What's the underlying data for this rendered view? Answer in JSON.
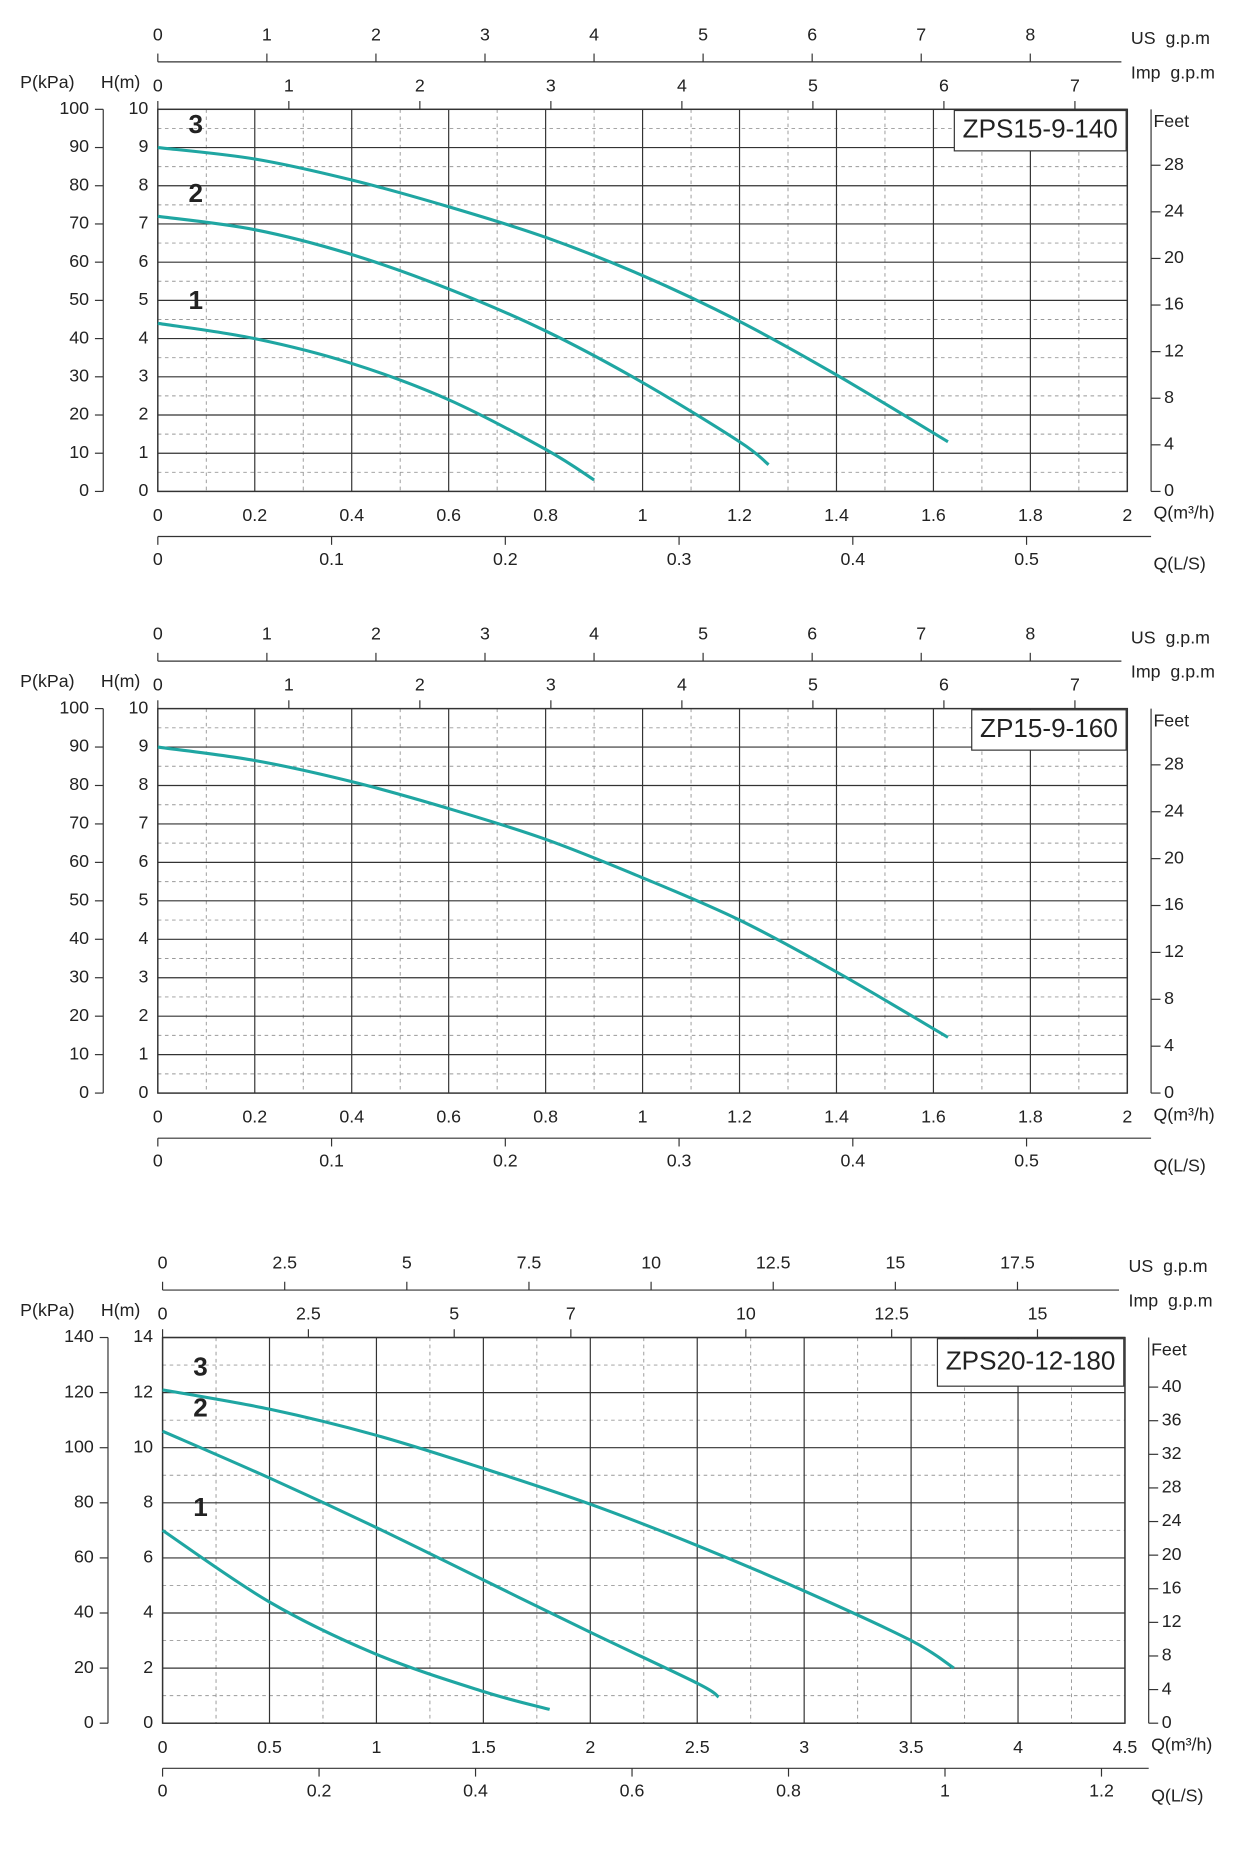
{
  "chart_data": [
    {
      "type": "line",
      "title": "ZPS15-9-140",
      "xlabel": "Q(m³/h)",
      "ylabel": "H(m)",
      "xlim": [
        0,
        2
      ],
      "xticks": [
        0,
        0.2,
        0.4,
        0.6,
        0.8,
        1,
        1.2,
        1.4,
        1.6,
        1.8,
        2
      ],
      "ylim": [
        0,
        10
      ],
      "yticks": [
        0,
        1,
        2,
        3,
        4,
        5,
        6,
        7,
        8,
        9,
        10
      ],
      "grid": true,
      "p_axis": {
        "label": "P(kPa)",
        "lim": [
          0,
          100
        ],
        "ticks": [
          0,
          10,
          20,
          30,
          40,
          50,
          60,
          70,
          80,
          90,
          100
        ]
      },
      "feet_axis": {
        "label": "Feet",
        "lim": [
          0,
          32.8
        ],
        "ticks": [
          0,
          4,
          8,
          12,
          16,
          20,
          24,
          28
        ]
      },
      "us_axis": {
        "label": "US  g.p.m",
        "lim": [
          0,
          8.89
        ],
        "ticks": [
          0,
          1,
          2,
          3,
          4,
          5,
          6,
          7,
          8
        ]
      },
      "imp_axis": {
        "label": "Imp  g.p.m",
        "lim": [
          0,
          7.4
        ],
        "ticks": [
          0,
          1,
          2,
          3,
          4,
          5,
          6,
          7
        ]
      },
      "ls_axis": {
        "label": "Q(L/S)",
        "lim": [
          0,
          0.558
        ],
        "ticks": [
          0,
          0.1,
          0.2,
          0.3,
          0.4,
          0.5
        ]
      },
      "series": [
        {
          "name": "3",
          "color": "#1fa6a2",
          "x": [
            0,
            0.2,
            0.4,
            0.6,
            0.8,
            1.0,
            1.2,
            1.4,
            1.63
          ],
          "values": [
            9.0,
            8.7,
            8.15,
            7.45,
            6.65,
            5.65,
            4.45,
            3.05,
            1.3
          ]
        },
        {
          "name": "2",
          "color": "#1fa6a2",
          "x": [
            0,
            0.2,
            0.4,
            0.6,
            0.8,
            1.0,
            1.2,
            1.26
          ],
          "values": [
            7.2,
            6.85,
            6.2,
            5.3,
            4.2,
            2.85,
            1.3,
            0.7
          ]
        },
        {
          "name": "1",
          "color": "#1fa6a2",
          "x": [
            0,
            0.2,
            0.4,
            0.6,
            0.8,
            0.9
          ],
          "values": [
            4.4,
            4.0,
            3.35,
            2.4,
            1.1,
            0.3
          ]
        }
      ]
    },
    {
      "type": "line",
      "title": "ZP15-9-160",
      "xlabel": "Q(m³/h)",
      "ylabel": "H(m)",
      "xlim": [
        0,
        2
      ],
      "xticks": [
        0,
        0.2,
        0.4,
        0.6,
        0.8,
        1,
        1.2,
        1.4,
        1.6,
        1.8,
        2
      ],
      "ylim": [
        0,
        10
      ],
      "yticks": [
        0,
        1,
        2,
        3,
        4,
        5,
        6,
        7,
        8,
        9,
        10
      ],
      "grid": true,
      "p_axis": {
        "label": "P(kPa)",
        "lim": [
          0,
          100
        ],
        "ticks": [
          0,
          10,
          20,
          30,
          40,
          50,
          60,
          70,
          80,
          90,
          100
        ]
      },
      "feet_axis": {
        "label": "Feet",
        "lim": [
          0,
          32.8
        ],
        "ticks": [
          0,
          4,
          8,
          12,
          16,
          20,
          24,
          28
        ]
      },
      "us_axis": {
        "label": "US  g.p.m",
        "lim": [
          0,
          8.89
        ],
        "ticks": [
          0,
          1,
          2,
          3,
          4,
          5,
          6,
          7,
          8
        ]
      },
      "imp_axis": {
        "label": "Imp  g.p.m",
        "lim": [
          0,
          7.4
        ],
        "ticks": [
          0,
          1,
          2,
          3,
          4,
          5,
          6,
          7
        ]
      },
      "ls_axis": {
        "label": "Q(L/S)",
        "lim": [
          0,
          0.558
        ],
        "ticks": [
          0,
          0.1,
          0.2,
          0.3,
          0.4,
          0.5
        ]
      },
      "series": [
        {
          "color": "#1fa6a2",
          "x": [
            0,
            0.2,
            0.4,
            0.6,
            0.8,
            1.0,
            1.2,
            1.4,
            1.63
          ],
          "values": [
            9.0,
            8.65,
            8.1,
            7.4,
            6.6,
            5.6,
            4.5,
            3.15,
            1.45
          ]
        }
      ]
    },
    {
      "type": "line",
      "title": "ZPS20-12-180",
      "xlabel": "Q(m³/h)",
      "ylabel": "H(m)",
      "xlim": [
        0,
        4.5
      ],
      "xticks": [
        0,
        0.5,
        1,
        1.5,
        2,
        2.5,
        3,
        3.5,
        4,
        4.5
      ],
      "ylim": [
        0,
        14
      ],
      "yticks": [
        0,
        2,
        4,
        6,
        8,
        10,
        12,
        14
      ],
      "grid": true,
      "p_axis": {
        "label": "P(kPa)",
        "lim": [
          0,
          140
        ],
        "ticks": [
          0,
          20,
          40,
          60,
          80,
          100,
          120,
          140
        ]
      },
      "feet_axis": {
        "label": "Feet",
        "lim": [
          0,
          45.9
        ],
        "ticks": [
          0,
          4,
          8,
          12,
          16,
          20,
          24,
          28,
          32,
          36,
          40
        ]
      },
      "us_axis": {
        "label": "US  g.p.m",
        "lim": [
          0,
          19.7
        ],
        "ticks": [
          0,
          2.5,
          5,
          7.5,
          10,
          12.5,
          15,
          17.5
        ]
      },
      "imp_axis": {
        "label": "Imp  g.p.m",
        "lim": [
          0,
          16.5
        ],
        "ticks": [
          0,
          2.5,
          5,
          7,
          10,
          12.5,
          15
        ]
      },
      "ls_axis": {
        "label": "Q(L/S)",
        "lim": [
          0,
          1.23
        ],
        "ticks": [
          0,
          0.2,
          0.4,
          0.6,
          0.8,
          1.0,
          1.2
        ]
      },
      "series": [
        {
          "name": "3",
          "color": "#1fa6a2",
          "x": [
            0,
            0.5,
            1,
            1.5,
            2,
            2.5,
            3,
            3.5,
            3.7
          ],
          "values": [
            12.1,
            11.4,
            10.45,
            9.25,
            7.95,
            6.45,
            4.8,
            3.0,
            2.0
          ]
        },
        {
          "name": "2",
          "color": "#1fa6a2",
          "x": [
            0,
            0.5,
            1,
            1.5,
            2,
            2.5,
            2.6
          ],
          "values": [
            10.6,
            8.9,
            7.1,
            5.2,
            3.3,
            1.45,
            0.95
          ]
        },
        {
          "name": "1",
          "color": "#1fa6a2",
          "x": [
            0,
            0.5,
            1,
            1.5,
            1.81
          ],
          "values": [
            7.0,
            4.4,
            2.5,
            1.15,
            0.5
          ]
        }
      ]
    }
  ]
}
